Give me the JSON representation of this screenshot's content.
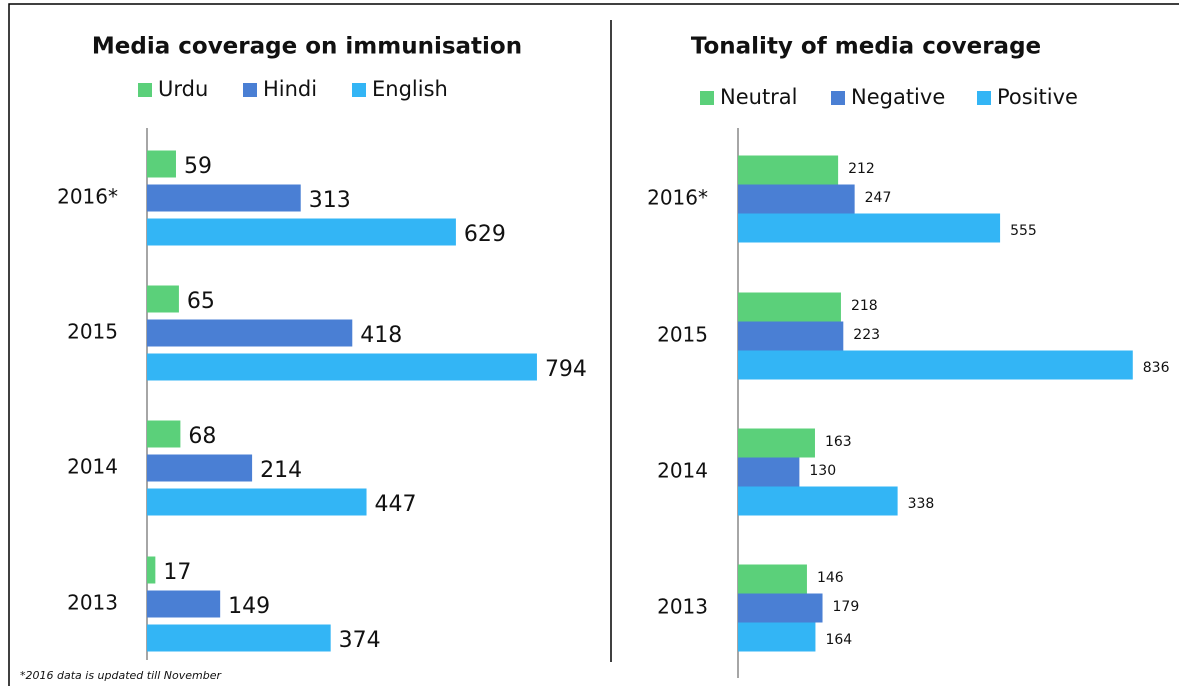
{
  "chart_data": [
    {
      "type": "bar",
      "orientation": "horizontal",
      "title": "Media coverage on immunisation",
      "categories": [
        "2016*",
        "2015",
        "2014",
        "2013"
      ],
      "series": [
        {
          "name": "Urdu",
          "color": "#5bd07a",
          "values": [
            59,
            65,
            68,
            17
          ]
        },
        {
          "name": "Hindi",
          "color": "#4a7fd4",
          "values": [
            313,
            418,
            214,
            149
          ]
        },
        {
          "name": "English",
          "color": "#33b5f5",
          "values": [
            629,
            794,
            447,
            374
          ]
        }
      ],
      "xlim": [
        0,
        900
      ],
      "note": "*2016 data is updated till November"
    },
    {
      "type": "bar",
      "orientation": "horizontal",
      "title": "Tonality of media coverage",
      "categories": [
        "2016*",
        "2015",
        "2014",
        "2013"
      ],
      "series": [
        {
          "name": "Neutral",
          "color": "#5bd07a",
          "values": [
            212,
            218,
            163,
            146
          ]
        },
        {
          "name": "Negative",
          "color": "#4a7fd4",
          "values": [
            247,
            223,
            130,
            179
          ]
        },
        {
          "name": "Positive",
          "color": "#33b5f5",
          "values": [
            555,
            836,
            338,
            164
          ]
        }
      ],
      "xlim": [
        0,
        900
      ]
    }
  ]
}
